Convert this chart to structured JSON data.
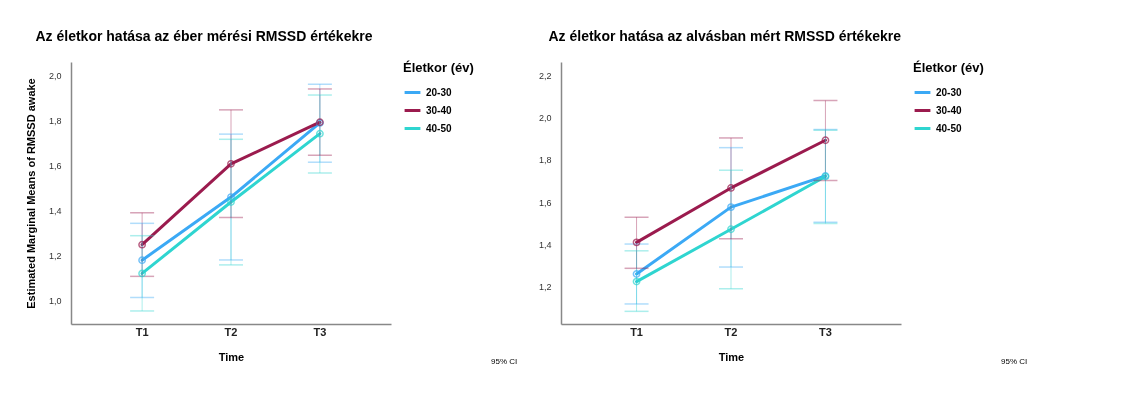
{
  "chart_data": [
    {
      "type": "line",
      "title": "Az életkor hatása az éber mérési RMSSD értékekre",
      "xlabel": "Time",
      "ylabel": "Estimated Marginal Means of RMSSD awake",
      "legend_title": "Életkor (év)",
      "legend": "top right",
      "marker": "circle",
      "grid": false,
      "categories": [
        "T1",
        "T2",
        "T3"
      ],
      "ylim": [
        0.894,
        2.06
      ],
      "yticks": [
        {
          "value": 1.0,
          "label": "1,0"
        },
        {
          "value": 1.2,
          "label": "1,2"
        },
        {
          "value": 1.4,
          "label": "1,4"
        },
        {
          "value": 1.6,
          "label": "1,6"
        },
        {
          "value": 1.8,
          "label": "1,8"
        },
        {
          "value": 2.0,
          "label": "2,0"
        }
      ],
      "annotations": [
        "95% CI"
      ],
      "series": [
        {
          "name": "20-30",
          "color": "#3ba9f5",
          "values": [
            1.178,
            1.459,
            1.789
          ],
          "errors": [
            [
              1.012,
              1.342
            ],
            [
              1.179,
              1.739
            ],
            [
              1.614,
              1.961
            ]
          ]
        },
        {
          "name": "30-40",
          "color": "#9b1b4e",
          "values": [
            1.247,
            1.607,
            1.792
          ],
          "errors": [
            [
              1.106,
              1.389
            ],
            [
              1.368,
              1.847
            ],
            [
              1.645,
              1.94
            ]
          ]
        },
        {
          "name": "40-50",
          "color": "#2fd5d0",
          "values": [
            1.119,
            1.437,
            1.741
          ],
          "errors": [
            [
              0.952,
              1.287
            ],
            [
              1.157,
              1.716
            ],
            [
              1.566,
              1.913
            ]
          ]
        }
      ]
    },
    {
      "type": "line",
      "title": "Az életkor hatása az alvásban mért RMSSD értékekre",
      "xlabel": "Time",
      "legend_title": "Életkor (év)",
      "legend": "top right",
      "marker": "circle",
      "grid": false,
      "categories": [
        "T1",
        "T2",
        "T3"
      ],
      "ylim": [
        1.022,
        2.264
      ],
      "yticks": [
        {
          "value": 1.2,
          "label": "1,2"
        },
        {
          "value": 1.4,
          "label": "1,4"
        },
        {
          "value": 1.6,
          "label": "1,6"
        },
        {
          "value": 1.8,
          "label": "1,8"
        },
        {
          "value": 2.0,
          "label": "2,0"
        },
        {
          "value": 2.2,
          "label": "2,2"
        }
      ],
      "annotations": [
        "95% CI"
      ],
      "series": [
        {
          "name": "20-30",
          "color": "#3ba9f5",
          "values": [
            1.259,
            1.576,
            1.724
          ],
          "errors": [
            [
              1.117,
              1.401
            ],
            [
              1.292,
              1.858
            ],
            [
              1.504,
              1.944
            ]
          ]
        },
        {
          "name": "30-40",
          "color": "#9b1b4e",
          "values": [
            1.409,
            1.667,
            1.893
          ],
          "errors": [
            [
              1.286,
              1.528
            ],
            [
              1.426,
              1.904
            ],
            [
              1.702,
              2.081
            ]
          ]
        },
        {
          "name": "40-50",
          "color": "#2fd5d0",
          "values": [
            1.223,
            1.471,
            1.721
          ],
          "errors": [
            [
              1.082,
              1.369
            ],
            [
              1.189,
              1.751
            ],
            [
              1.498,
              1.94
            ]
          ]
        }
      ]
    }
  ]
}
